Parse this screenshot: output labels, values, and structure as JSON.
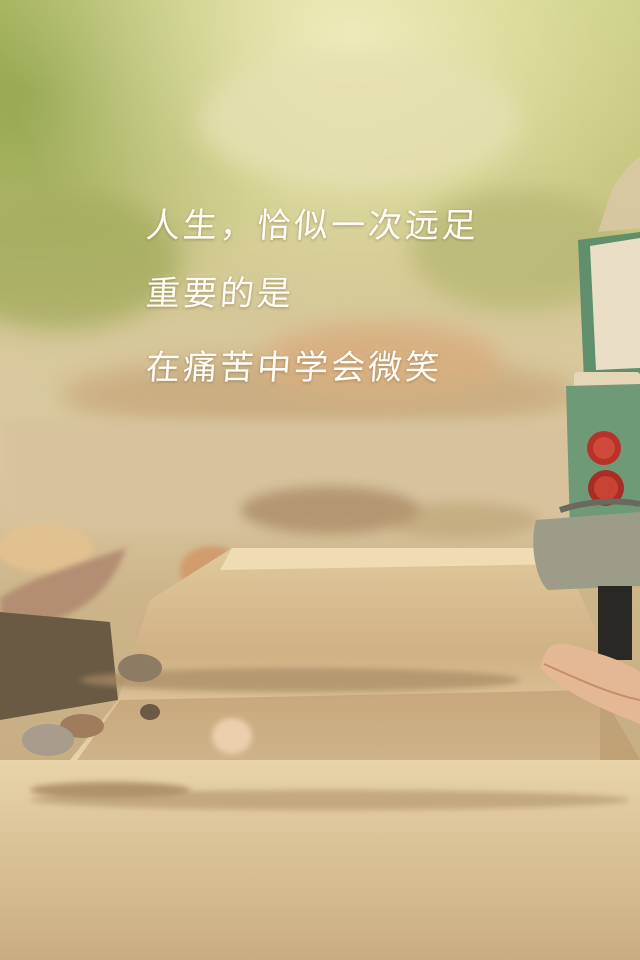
{
  "quote": {
    "lines": [
      "人生，恰似一次远足",
      "重要的是",
      "在痛苦中学会微笑"
    ]
  },
  "colors": {
    "text": "#fffdf6",
    "foliage": "#b9c26a",
    "path": "#d9bf8e",
    "bus_green": "#6f9a78",
    "bus_light": "#c83a2e"
  }
}
